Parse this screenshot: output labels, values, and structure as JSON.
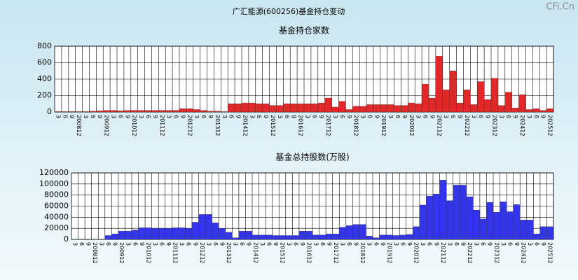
{
  "title": "广汇能源(600256)基金持仓变动",
  "watermark": "CFi.Cn",
  "chart_data": [
    {
      "type": "bar",
      "title": "基金持仓家数",
      "categories": [
        "3",
        "6",
        "9",
        "200812",
        "3",
        "6",
        "9",
        "200912",
        "3",
        "6",
        "9",
        "201012",
        "3",
        "6",
        "9",
        "201112",
        "3",
        "6",
        "9",
        "201212",
        "3",
        "6",
        "9",
        "201312",
        "3",
        "6",
        "9",
        "201412",
        "3",
        "6",
        "9",
        "201512",
        "3",
        "6",
        "9",
        "201612",
        "3",
        "6",
        "9",
        "201712",
        "3",
        "6",
        "9",
        "201812",
        "3",
        "6",
        "9",
        "201912",
        "3",
        "6",
        "9",
        "202012",
        "3",
        "6",
        "9",
        "202112",
        "3",
        "6",
        "9",
        "202212",
        "3",
        "6",
        "9",
        "202312",
        "3",
        "6",
        "9",
        "202412",
        "3",
        "6",
        "9",
        "202512"
      ],
      "values": [
        5,
        5,
        5,
        5,
        5,
        10,
        15,
        20,
        20,
        15,
        20,
        20,
        20,
        20,
        20,
        20,
        20,
        20,
        40,
        40,
        30,
        20,
        10,
        10,
        5,
        100,
        100,
        110,
        110,
        100,
        100,
        80,
        80,
        100,
        100,
        100,
        100,
        100,
        110,
        170,
        60,
        130,
        30,
        70,
        70,
        90,
        90,
        90,
        90,
        80,
        80,
        110,
        100,
        340,
        170,
        680,
        270,
        500,
        110,
        270,
        90,
        370,
        150,
        410,
        80,
        240,
        50,
        210,
        30,
        40,
        20,
        40
      ],
      "color": "#e02828",
      "ylim": [
        0,
        800
      ],
      "yticks": [
        0,
        200,
        400,
        600,
        800
      ],
      "grid": true
    },
    {
      "type": "bar",
      "title": "基金总持股数(万股)",
      "categories": [
        "3",
        "6",
        "9",
        "200812",
        "3",
        "6",
        "9",
        "200912",
        "3",
        "6",
        "9",
        "201012",
        "3",
        "6",
        "9",
        "201112",
        "3",
        "6",
        "9",
        "201212",
        "3",
        "6",
        "9",
        "201312",
        "3",
        "6",
        "9",
        "201412",
        "3",
        "6",
        "9",
        "201512",
        "3",
        "6",
        "9",
        "201612",
        "3",
        "6",
        "9",
        "201712",
        "3",
        "6",
        "9",
        "201812",
        "3",
        "6",
        "9",
        "201912",
        "3",
        "6",
        "9",
        "202012",
        "3",
        "6",
        "9",
        "202112",
        "3",
        "6",
        "9",
        "202212",
        "3",
        "6",
        "9",
        "202312",
        "3",
        "6",
        "9",
        "202412",
        "3",
        "6",
        "9",
        "202512"
      ],
      "values": [
        0,
        0,
        0,
        0,
        0,
        7000,
        10000,
        15000,
        15000,
        17000,
        21000,
        21000,
        20000,
        20000,
        20000,
        21000,
        21000,
        20000,
        31000,
        45000,
        45000,
        30000,
        20000,
        13000,
        3000,
        15000,
        15000,
        8000,
        8000,
        8000,
        7000,
        7000,
        7000,
        7000,
        15000,
        15000,
        8000,
        8000,
        10000,
        10000,
        22000,
        25000,
        27000,
        27000,
        6000,
        3000,
        8000,
        8000,
        7000,
        8000,
        9000,
        23000,
        62000,
        78000,
        82000,
        107000,
        70000,
        98000,
        98000,
        77000,
        53000,
        37000,
        67000,
        49000,
        68000,
        50000,
        63000,
        35000,
        35000,
        10000,
        23000,
        23000
      ],
      "color": "#3434e8",
      "ylim": [
        0,
        120000
      ],
      "yticks": [
        0,
        20000,
        40000,
        60000,
        80000,
        100000,
        120000
      ],
      "grid": true
    }
  ]
}
